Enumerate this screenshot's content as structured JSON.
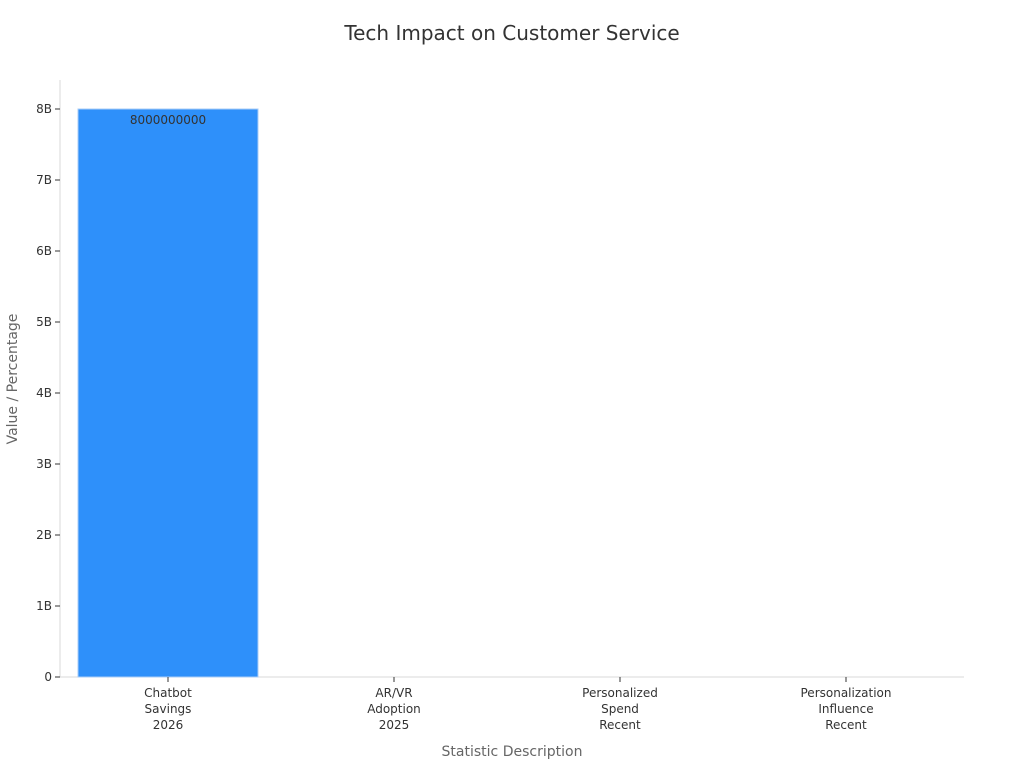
{
  "chart_data": {
    "type": "bar",
    "title": "Tech Impact on Customer Service",
    "xlabel": "Statistic Description",
    "ylabel": "Value / Percentage",
    "categories": [
      [
        "Chatbot",
        "Savings",
        "2026"
      ],
      [
        "AR/VR",
        "Adoption",
        "2025"
      ],
      [
        "Personalized",
        "Spend",
        "Recent"
      ],
      [
        "Personalization",
        "Influence",
        "Recent"
      ]
    ],
    "values": [
      8000000000,
      0,
      0,
      0
    ],
    "data_labels": [
      "8000000000",
      "",
      "",
      ""
    ],
    "ylim": [
      0,
      8400000000
    ],
    "yticks": [
      0,
      1000000000,
      2000000000,
      3000000000,
      4000000000,
      5000000000,
      6000000000,
      7000000000,
      8000000000
    ],
    "ytick_labels": [
      "0",
      "1B",
      "2B",
      "3B",
      "4B",
      "5B",
      "6B",
      "7B",
      "8B"
    ],
    "bar_color": "#2e90fa",
    "bar_edge_color": "#a9cdf7",
    "grid": false,
    "legend": "none"
  }
}
